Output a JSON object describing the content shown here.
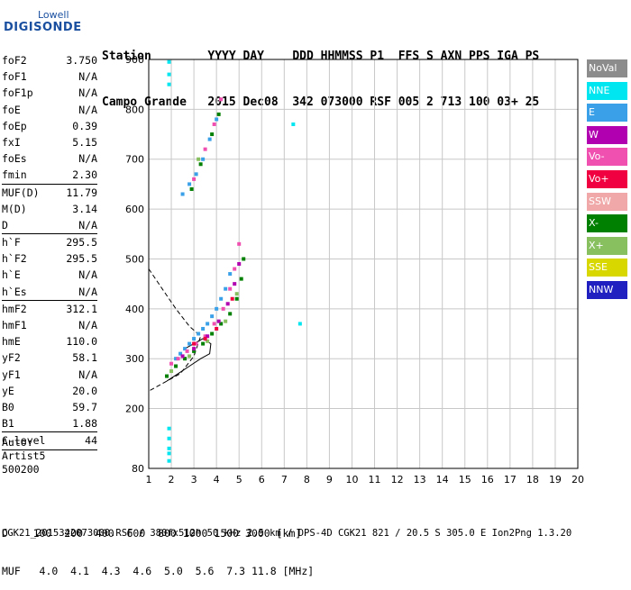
{
  "logo": {
    "line1": "Lowell",
    "line2": "DIGISONDE"
  },
  "header": {
    "line1": "Station        YYYY DAY    DDD HHMMSS P1  FFS S AXN PPS IGA PS",
    "line2": "Campo Grande   2015 Dec08  342 073000 RSF 005 2 713 100 03+ 25"
  },
  "params": [
    {
      "name": "foF2",
      "value": "3.750"
    },
    {
      "name": "foF1",
      "value": "N/A"
    },
    {
      "name": "foF1p",
      "value": "N/A"
    },
    {
      "name": "foE",
      "value": "N/A"
    },
    {
      "name": "foEp",
      "value": "0.39"
    },
    {
      "name": "fxI",
      "value": "5.15"
    },
    {
      "name": "foEs",
      "value": "N/A"
    },
    {
      "name": "fmin",
      "value": "2.30"
    },
    {
      "sep": true
    },
    {
      "name": "MUF(D)",
      "value": "11.79"
    },
    {
      "name": "M(D)",
      "value": "3.14"
    },
    {
      "name": "D",
      "value": "N/A"
    },
    {
      "sep": true
    },
    {
      "name": "h`F",
      "value": "295.5"
    },
    {
      "name": "h`F2",
      "value": "295.5"
    },
    {
      "name": "h`E",
      "value": "N/A"
    },
    {
      "name": "h`Es",
      "value": "N/A"
    },
    {
      "sep": true
    },
    {
      "name": "hmF2",
      "value": "312.1"
    },
    {
      "name": "hmF1",
      "value": "N/A"
    },
    {
      "name": "hmE",
      "value": "110.0"
    },
    {
      "name": "yF2",
      "value": "58.1"
    },
    {
      "name": "yF1",
      "value": "N/A"
    },
    {
      "name": "yE",
      "value": "20.0"
    },
    {
      "name": "B0",
      "value": "59.7"
    },
    {
      "name": "B1",
      "value": "1.88"
    },
    {
      "sep": true
    },
    {
      "name": "C-level",
      "value": "44"
    },
    {
      "sep": true
    }
  ],
  "auto": {
    "line1": "Auto:",
    "line2": "Artist5",
    "line3": "500200"
  },
  "legend": [
    {
      "label": "NoVal",
      "color": "#8c8c8c"
    },
    {
      "label": "NNE",
      "color": "#00e6f0"
    },
    {
      "label": "E",
      "color": "#3aa0e8"
    },
    {
      "label": "W",
      "color": "#b000b0"
    },
    {
      "label": "Vo-",
      "color": "#f050b0"
    },
    {
      "label": "Vo+",
      "color": "#f00040"
    },
    {
      "label": "SSW",
      "color": "#f0a8a8"
    },
    {
      "label": "X-",
      "color": "#008000"
    },
    {
      "label": "X+",
      "color": "#88c060"
    },
    {
      "label": "SSE",
      "color": "#d8d800"
    },
    {
      "label": "NNW",
      "color": "#2020c0"
    }
  ],
  "footer": {
    "d_line": "D    100  200  400  600  800 1000 1500 3000 [km]",
    "muf_line": "MUF   4.0  4.1  4.3  4.6  5.0  5.6  7.3 11.8 [MHz]",
    "file_line": "CGK21_2015342073000.RSF / 380fx512h 50 kHz 2.5 km / DPS-4D CGK21 821 / 20.5 S 305.0 E Ion2Png 1.3.20"
  },
  "chart_data": {
    "type": "scatter",
    "x_ticks": [
      1,
      2,
      3,
      4,
      5,
      6,
      7,
      8,
      9,
      10,
      11,
      12,
      13,
      14,
      15,
      16,
      17,
      18,
      19,
      20
    ],
    "y_ticks": [
      80,
      200,
      300,
      400,
      500,
      600,
      700,
      800,
      900
    ],
    "xlim": [
      1,
      20
    ],
    "ylim": [
      80,
      900
    ],
    "grid": true,
    "legend_position": "right",
    "series": [
      {
        "color": "#3aa0e8",
        "points": [
          [
            2.2,
            300
          ],
          [
            2.4,
            310
          ],
          [
            2.6,
            320
          ],
          [
            2.8,
            330
          ],
          [
            3.0,
            340
          ],
          [
            3.2,
            350
          ],
          [
            3.4,
            360
          ],
          [
            3.6,
            370
          ],
          [
            3.8,
            385
          ],
          [
            4.0,
            400
          ],
          [
            4.2,
            420
          ],
          [
            4.4,
            440
          ],
          [
            4.6,
            470
          ],
          [
            2.5,
            630
          ],
          [
            2.8,
            650
          ],
          [
            3.1,
            670
          ],
          [
            3.4,
            700
          ],
          [
            3.7,
            740
          ],
          [
            4.0,
            780
          ]
        ]
      },
      {
        "color": "#f050b0",
        "points": [
          [
            2.0,
            290
          ],
          [
            2.3,
            300
          ],
          [
            2.7,
            315
          ],
          [
            3.1,
            330
          ],
          [
            3.5,
            345
          ],
          [
            3.9,
            370
          ],
          [
            4.3,
            400
          ],
          [
            4.6,
            440
          ],
          [
            4.8,
            480
          ],
          [
            5.0,
            530
          ],
          [
            3.0,
            660
          ],
          [
            3.5,
            720
          ],
          [
            3.9,
            770
          ],
          [
            4.2,
            820
          ]
        ]
      },
      {
        "color": "#008000",
        "points": [
          [
            1.8,
            265
          ],
          [
            2.2,
            285
          ],
          [
            2.6,
            300
          ],
          [
            3.0,
            315
          ],
          [
            3.4,
            330
          ],
          [
            3.8,
            350
          ],
          [
            4.2,
            370
          ],
          [
            4.6,
            390
          ],
          [
            4.9,
            420
          ],
          [
            5.1,
            460
          ],
          [
            5.2,
            500
          ],
          [
            2.9,
            640
          ],
          [
            3.3,
            690
          ],
          [
            3.8,
            750
          ],
          [
            4.1,
            790
          ]
        ]
      },
      {
        "color": "#b000b0",
        "points": [
          [
            2.5,
            305
          ],
          [
            3.0,
            320
          ],
          [
            3.6,
            345
          ],
          [
            4.1,
            375
          ],
          [
            4.5,
            410
          ],
          [
            4.8,
            450
          ],
          [
            5.0,
            490
          ]
        ]
      },
      {
        "color": "#88c060",
        "points": [
          [
            2.0,
            275
          ],
          [
            2.8,
            305
          ],
          [
            3.6,
            335
          ],
          [
            4.4,
            375
          ],
          [
            4.9,
            430
          ],
          [
            3.2,
            700
          ]
        ]
      },
      {
        "color": "#f00040",
        "points": [
          [
            3.0,
            330
          ],
          [
            3.5,
            340
          ],
          [
            4.0,
            360
          ],
          [
            4.7,
            420
          ]
        ]
      },
      {
        "color": "#00e6f0",
        "points": [
          [
            1.9,
            895
          ],
          [
            1.9,
            870
          ],
          [
            1.9,
            850
          ],
          [
            1.9,
            160
          ],
          [
            1.9,
            140
          ],
          [
            1.9,
            120
          ],
          [
            1.9,
            110
          ],
          [
            1.9,
            95
          ],
          [
            7.7,
            370
          ],
          [
            7.4,
            770
          ]
        ]
      }
    ],
    "profile_solid": [
      [
        1.8,
        255
      ],
      [
        2.3,
        270
      ],
      [
        2.8,
        285
      ],
      [
        3.3,
        300
      ],
      [
        3.7,
        310
      ],
      [
        3.75,
        330
      ],
      [
        3.4,
        340
      ],
      [
        3.0,
        330
      ],
      [
        2.6,
        320
      ]
    ],
    "profile_dashed": [
      [
        1.0,
        480
      ],
      [
        1.6,
        440
      ],
      [
        2.2,
        400
      ],
      [
        2.8,
        365
      ],
      [
        3.3,
        345
      ],
      [
        3.0,
        305
      ],
      [
        2.4,
        270
      ],
      [
        1.6,
        250
      ],
      [
        1.0,
        235
      ]
    ]
  }
}
